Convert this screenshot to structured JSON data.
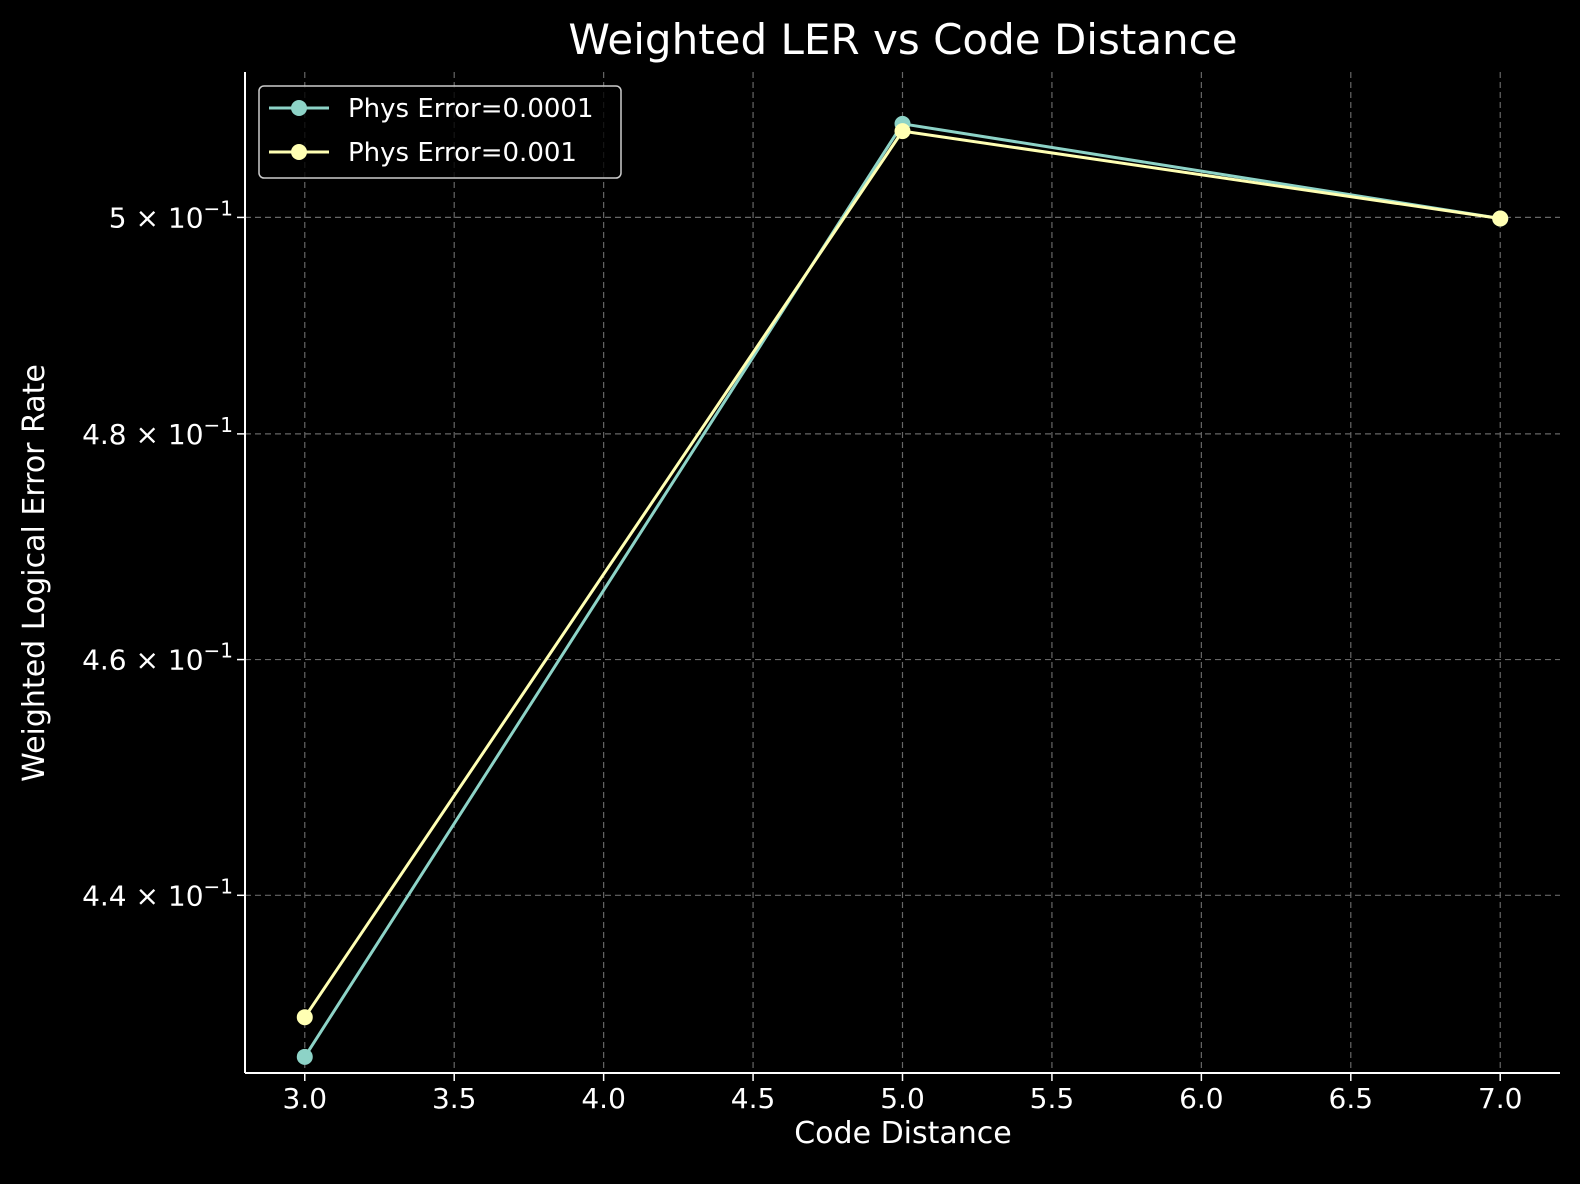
{
  "chart_data": {
    "type": "line",
    "title": "Weighted LER vs Code Distance",
    "xlabel": "Code Distance",
    "ylabel": "Weighted Logical Error Rate",
    "yscale": "log",
    "xlim": [
      2.8,
      7.2
    ],
    "ylim": [
      0.4255,
      0.5139
    ],
    "xticks": [
      3.0,
      3.5,
      4.0,
      4.5,
      5.0,
      5.5,
      6.0,
      6.5,
      7.0
    ],
    "xtick_labels": [
      "3.0",
      "3.5",
      "4.0",
      "4.5",
      "5.0",
      "5.5",
      "6.0",
      "6.5",
      "7.0"
    ],
    "yticks": [
      {
        "value": 0.44,
        "mantissa": "4.4",
        "base": "10",
        "exponent": "−1"
      },
      {
        "value": 0.46,
        "mantissa": "4.6",
        "base": "10",
        "exponent": "−1"
      },
      {
        "value": 0.48,
        "mantissa": "4.8",
        "base": "10",
        "exponent": "−1"
      },
      {
        "value": 0.5,
        "mantissa": "5",
        "base": "10",
        "exponent": "−1"
      }
    ],
    "times_symbol": "×",
    "grid": true,
    "legend_position": "top-left",
    "x": [
      3,
      5,
      7
    ],
    "series": [
      {
        "name": "Phys Error=0.0001",
        "color": "#8dd3c7",
        "values": [
          0.4268,
          0.5089,
          0.4999
        ]
      },
      {
        "name": "Phys Error=0.001",
        "color": "#ffffb3",
        "values": [
          0.43,
          0.5082,
          0.4999
        ]
      }
    ],
    "colors": {
      "background": "#000000",
      "axes": "#ffffff",
      "grid": "#666666",
      "text": "#ffffff"
    }
  }
}
